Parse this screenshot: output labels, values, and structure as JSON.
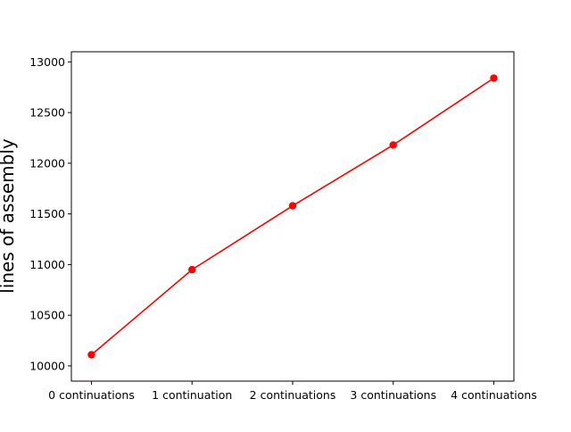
{
  "chart_data": {
    "type": "line",
    "title": "",
    "xlabel": "",
    "ylabel": "lines of assembly",
    "categories": [
      "0 continuations",
      "1 continuation",
      "2 continuations",
      "3 continuations",
      "4 continuations"
    ],
    "series": [
      {
        "values": [
          10110,
          10950,
          11580,
          12180,
          12840
        ],
        "color": "#ff0000",
        "marker": "circle"
      }
    ],
    "ylim": [
      9850,
      13100
    ],
    "yticks": [
      10000,
      10500,
      11000,
      11500,
      12000,
      12500,
      13000
    ],
    "grid": false,
    "legend": "none"
  }
}
